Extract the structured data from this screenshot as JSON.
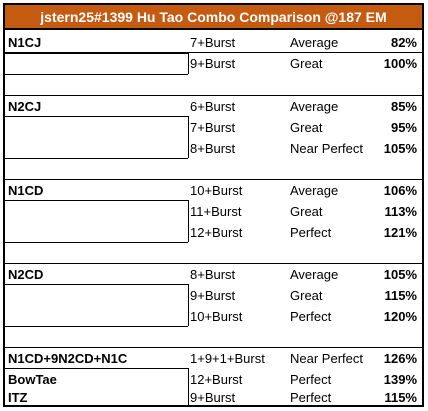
{
  "title": "jstern25#1399 Hu Tao Combo Comparison @187 EM",
  "groups": [
    {
      "combo": "N1CJ",
      "rows": [
        {
          "hits": "7+Burst",
          "rating": "Average",
          "pct": "82%"
        },
        {
          "hits": "9+Burst",
          "rating": "Great",
          "pct": "100%"
        }
      ]
    },
    {
      "combo": "N2CJ",
      "rows": [
        {
          "hits": "6+Burst",
          "rating": "Average",
          "pct": "85%"
        },
        {
          "hits": "7+Burst",
          "rating": "Great",
          "pct": "95%"
        },
        {
          "hits": "8+Burst",
          "rating": "Near Perfect",
          "pct": "105%"
        }
      ]
    },
    {
      "combo": "N1CD",
      "rows": [
        {
          "hits": "10+Burst",
          "rating": "Average",
          "pct": "106%"
        },
        {
          "hits": "11+Burst",
          "rating": "Great",
          "pct": "113%"
        },
        {
          "hits": "12+Burst",
          "rating": "Perfect",
          "pct": "121%"
        }
      ]
    },
    {
      "combo": "N2CD",
      "rows": [
        {
          "hits": "8+Burst",
          "rating": "Average",
          "pct": "105%"
        },
        {
          "hits": "9+Burst",
          "rating": "Great",
          "pct": "115%"
        },
        {
          "hits": "10+Burst",
          "rating": "Perfect",
          "pct": "120%"
        }
      ]
    },
    {
      "combo": "N1CD+9N2CD+N1C",
      "rows": [
        {
          "hits": "1+9+1+Burst",
          "rating": "Near Perfect",
          "pct": "126%"
        }
      ]
    },
    {
      "combo": "BowTae",
      "rows": [
        {
          "hits": "12+Burst",
          "rating": "Perfect",
          "pct": "139%"
        }
      ]
    },
    {
      "combo": "ITZ",
      "rows": [
        {
          "hits": "9+Burst",
          "rating": "Perfect",
          "pct": "115%"
        }
      ]
    }
  ]
}
